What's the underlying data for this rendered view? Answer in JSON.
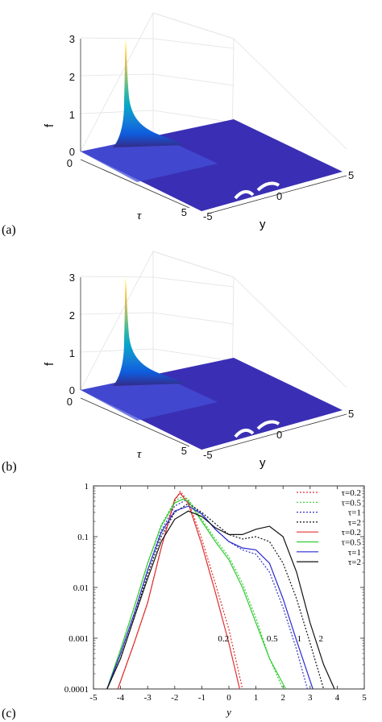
{
  "panels": [
    {
      "label": "(a)",
      "zlabel": "f",
      "xlabel": "τ",
      "ylabel": "y",
      "ticks": {
        "z": [
          "0",
          "1",
          "2",
          "3"
        ],
        "tau": [
          "0",
          "5"
        ],
        "y": [
          "-5",
          "0",
          "5"
        ]
      }
    },
    {
      "label": "(b)",
      "zlabel": "f",
      "xlabel": "τ",
      "ylabel": "y",
      "ticks": {
        "z": [
          "0",
          "1",
          "2",
          "3"
        ],
        "tau": [
          "0",
          "5"
        ],
        "y": [
          "-5",
          "0",
          "5"
        ]
      }
    },
    {
      "label": "(c)"
    }
  ],
  "colormap": [
    "#352a87",
    "#0f5cdd",
    "#1481d6",
    "#06a4ca",
    "#2eb7a4",
    "#87bf77",
    "#d1bb59",
    "#fec832",
    "#f9fb0e"
  ],
  "chart_data": [
    {
      "type": "surface",
      "zlim": [
        0,
        3
      ],
      "tau_range": [
        0,
        5
      ],
      "y_range": [
        -5,
        5
      ],
      "peak": {
        "tau": 0,
        "y": -1.8,
        "f": 3.0
      }
    },
    {
      "type": "surface",
      "zlim": [
        0,
        3
      ],
      "tau_range": [
        0,
        5
      ],
      "y_range": [
        -5,
        5
      ],
      "peak": {
        "tau": 0,
        "y": -1.8,
        "f": 3.0
      }
    },
    {
      "type": "line",
      "xlabel": "y",
      "ylabel": "",
      "xlim": [
        -5,
        5
      ],
      "ylim": [
        0.0001,
        1
      ],
      "yscale": "log",
      "xticks": [
        "-5",
        "-4",
        "-3",
        "-2",
        "-1",
        "0",
        "1",
        "2",
        "3",
        "4",
        "5"
      ],
      "yticks": [
        {
          "v": 1,
          "label": "1"
        },
        {
          "v": 0.1,
          "label": "0.1"
        },
        {
          "v": 0.01,
          "label": "0.01"
        },
        {
          "v": 0.001,
          "label": "0.001"
        },
        {
          "v": 0.0001,
          "label": "0.0001"
        }
      ],
      "legend_position": "top-right",
      "annotations": [
        {
          "text": "0.2",
          "x": -0.2,
          "y": 0.001
        },
        {
          "text": "0.5",
          "x": 1.6,
          "y": 0.001
        },
        {
          "text": "1",
          "x": 2.6,
          "y": 0.001
        },
        {
          "text": "2",
          "x": 3.4,
          "y": 0.001
        }
      ],
      "series": [
        {
          "name": "τ=0.2",
          "color": "#e03030",
          "dash": true,
          "x": [
            -4.1,
            -3.5,
            -3,
            -2.5,
            -2,
            -1.8,
            -1.5,
            -1,
            -0.5,
            0,
            0.3,
            0.5
          ],
          "y": [
            0.0001,
            0.0008,
            0.005,
            0.06,
            0.5,
            0.78,
            0.5,
            0.09,
            0.012,
            0.0015,
            0.0003,
            0.0001
          ]
        },
        {
          "name": "τ=0.5",
          "color": "#33cc33",
          "dash": true,
          "x": [
            -4.5,
            -4,
            -3.5,
            -3,
            -2.5,
            -2,
            -1.7,
            -1.5,
            -1,
            -0.5,
            0,
            0.5,
            1,
            1.5,
            2
          ],
          "y": [
            0.0001,
            0.0006,
            0.004,
            0.03,
            0.17,
            0.5,
            0.62,
            0.55,
            0.22,
            0.09,
            0.04,
            0.012,
            0.0025,
            0.0004,
            0.0001
          ]
        },
        {
          "name": "τ=1",
          "color": "#3333cc",
          "dash": true,
          "x": [
            -4.5,
            -4,
            -3.5,
            -3,
            -2.5,
            -2,
            -1.6,
            -1,
            -0.5,
            0,
            0.5,
            1,
            1.5,
            2,
            2.5,
            2.9
          ],
          "y": [
            0.0001,
            0.0005,
            0.003,
            0.022,
            0.13,
            0.4,
            0.52,
            0.28,
            0.14,
            0.08,
            0.055,
            0.045,
            0.02,
            0.004,
            0.0006,
            0.0001
          ]
        },
        {
          "name": "τ=2",
          "color": "#111111",
          "dash": true,
          "x": [
            -4.5,
            -4,
            -3.5,
            -3,
            -2.5,
            -2,
            -1.5,
            -1,
            -0.5,
            0,
            0.5,
            1,
            1.5,
            2,
            2.5,
            3,
            3.5
          ],
          "y": [
            0.0001,
            0.0004,
            0.0025,
            0.018,
            0.1,
            0.3,
            0.45,
            0.3,
            0.18,
            0.11,
            0.09,
            0.1,
            0.08,
            0.03,
            0.006,
            0.0008,
            0.0001
          ]
        },
        {
          "name": "τ=0.2",
          "color": "#e03030",
          "dash": false,
          "x": [
            -4.1,
            -3.5,
            -3,
            -2.5,
            -2,
            -1.8,
            -1.5,
            -1,
            -0.5,
            0,
            0.4
          ],
          "y": [
            0.0001,
            0.0008,
            0.005,
            0.06,
            0.55,
            0.72,
            0.45,
            0.07,
            0.008,
            0.0008,
            0.0001
          ]
        },
        {
          "name": "τ=0.5",
          "color": "#33cc33",
          "dash": false,
          "x": [
            -4.5,
            -4,
            -3.5,
            -3,
            -2.5,
            -2,
            -1.7,
            -1.5,
            -1,
            -0.5,
            0,
            0.5,
            1,
            1.5,
            2.1
          ],
          "y": [
            0.0001,
            0.0006,
            0.004,
            0.03,
            0.16,
            0.46,
            0.55,
            0.5,
            0.2,
            0.08,
            0.035,
            0.01,
            0.002,
            0.0004,
            0.0001
          ]
        },
        {
          "name": "τ=1",
          "color": "#2a2ad0",
          "dash": false,
          "x": [
            -4.5,
            -4,
            -3.5,
            -3,
            -2.5,
            -2,
            -1.5,
            -1,
            -0.5,
            0,
            0.5,
            1,
            1.5,
            2,
            2.5,
            3.1
          ],
          "y": [
            0.0001,
            0.0005,
            0.003,
            0.022,
            0.12,
            0.32,
            0.4,
            0.28,
            0.14,
            0.08,
            0.06,
            0.055,
            0.03,
            0.006,
            0.0009,
            0.0001
          ]
        },
        {
          "name": "τ=2",
          "color": "#111111",
          "dash": false,
          "x": [
            -4.5,
            -4,
            -3.5,
            -3,
            -2.5,
            -2,
            -1.5,
            -1,
            -0.5,
            0,
            0.5,
            1,
            1.5,
            2,
            2.5,
            3,
            3.5,
            3.9
          ],
          "y": [
            0.0001,
            0.0004,
            0.0025,
            0.015,
            0.08,
            0.22,
            0.32,
            0.25,
            0.15,
            0.11,
            0.11,
            0.14,
            0.16,
            0.1,
            0.02,
            0.002,
            0.0003,
            0.0001
          ]
        }
      ]
    }
  ]
}
